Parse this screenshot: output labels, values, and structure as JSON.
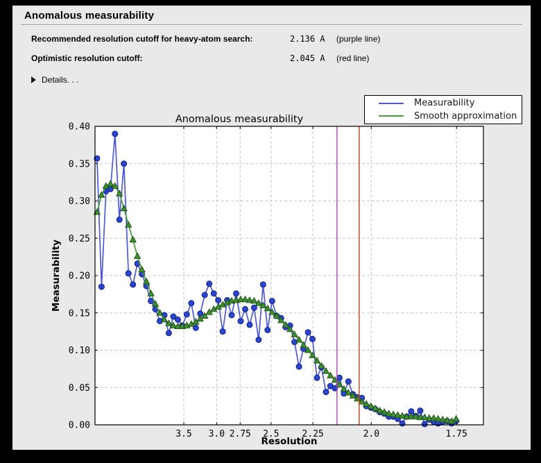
{
  "window": {
    "title": "Anomalous measurability",
    "rows": [
      {
        "label": "Recommended resolution cutoff for heavy-atom search:",
        "value": "2.136 A",
        "note": "(purple line)"
      },
      {
        "label": "Optimistic resolution cutoff:",
        "value": "2.045 A",
        "note": "(red line)"
      }
    ],
    "details_label": "Details. . ."
  },
  "chart_data": {
    "type": "line",
    "title": "Anomalous measurability",
    "xlabel": "Resolution",
    "ylabel": "Measurability",
    "x_scale": "d_star_sq (1/resolution^2), resolution in Angstrom decreasing to the right",
    "xlim_dss": [
      0.0019,
      0.3507
    ],
    "ylim": [
      0.0,
      0.4
    ],
    "grid": true,
    "legend_position": "top-right-above-axes",
    "x_ticks": [
      {
        "d": 3.5,
        "label": "3.5"
      },
      {
        "d": 3.0,
        "label": "3.0"
      },
      {
        "d": 2.75,
        "label": "2.75"
      },
      {
        "d": 2.5,
        "label": "2.5"
      },
      {
        "d": 2.25,
        "label": "2.25"
      },
      {
        "d": 2.0,
        "label": "2.0"
      },
      {
        "d": 1.75,
        "label": "1.75"
      }
    ],
    "y_ticks": [
      {
        "v": 0.0,
        "label": "0.00"
      },
      {
        "v": 0.05,
        "label": "0.05"
      },
      {
        "v": 0.1,
        "label": "0.10"
      },
      {
        "v": 0.15,
        "label": "0.15"
      },
      {
        "v": 0.2,
        "label": "0.20"
      },
      {
        "v": 0.25,
        "label": "0.25"
      },
      {
        "v": 0.3,
        "label": "0.30"
      },
      {
        "v": 0.35,
        "label": "0.35"
      },
      {
        "v": 0.4,
        "label": "0.40"
      }
    ],
    "series": [
      {
        "name": "Measurability",
        "marker": "circle",
        "line_color": "#4d58d4",
        "marker_color": "#2a46cc",
        "marker_edge": "#141e86",
        "x_start_dss": 0.0037,
        "x_step_dss": 0.004031,
        "values": [
          0.357,
          0.185,
          0.313,
          0.316,
          0.39,
          0.275,
          0.35,
          0.203,
          0.188,
          0.216,
          0.202,
          0.186,
          0.166,
          0.155,
          0.139,
          0.147,
          0.123,
          0.145,
          0.141,
          0.133,
          0.148,
          0.163,
          0.13,
          0.149,
          0.174,
          0.189,
          0.176,
          0.167,
          0.125,
          0.167,
          0.147,
          0.176,
          0.139,
          0.155,
          0.134,
          0.157,
          0.114,
          0.188,
          0.127,
          0.166,
          0.146,
          0.143,
          0.131,
          0.133,
          0.111,
          0.078,
          0.102,
          0.124,
          0.115,
          0.063,
          0.077,
          0.044,
          0.052,
          0.049,
          0.063,
          0.042,
          0.058,
          0.041,
          0.037,
          0.036,
          0.025,
          0.023,
          0.021,
          0.017,
          0.015,
          0.011,
          0.011,
          0.008,
          0.002,
          0.011,
          0.018,
          0.012,
          0.019,
          0.001,
          0.007,
          0.004,
          0.002,
          0.004,
          0.005,
          0.002,
          0.005
        ]
      },
      {
        "name": "Smooth approximation",
        "marker": "triangle",
        "line_color": "#4b9a3c",
        "marker_color": "#3f9130",
        "marker_edge": "#1f5317",
        "x_start_dss": 0.0037,
        "x_step_dss": 0.004031,
        "values": [
          0.285,
          0.308,
          0.32,
          0.323,
          0.32,
          0.31,
          0.29,
          0.268,
          0.248,
          0.226,
          0.208,
          0.192,
          0.176,
          0.162,
          0.15,
          0.141,
          0.136,
          0.133,
          0.132,
          0.132,
          0.133,
          0.135,
          0.138,
          0.142,
          0.146,
          0.151,
          0.155,
          0.158,
          0.161,
          0.164,
          0.166,
          0.167,
          0.168,
          0.168,
          0.167,
          0.166,
          0.163,
          0.16,
          0.156,
          0.151,
          0.146,
          0.14,
          0.134,
          0.128,
          0.121,
          0.114,
          0.107,
          0.1,
          0.093,
          0.086,
          0.079,
          0.072,
          0.066,
          0.06,
          0.054,
          0.048,
          0.043,
          0.039,
          0.035,
          0.031,
          0.028,
          0.025,
          0.022,
          0.019,
          0.017,
          0.015,
          0.014,
          0.013,
          0.012,
          0.011,
          0.011,
          0.011,
          0.01,
          0.01,
          0.009,
          0.009,
          0.008,
          0.007,
          0.006,
          0.005,
          0.008
        ]
      }
    ],
    "vlines": [
      {
        "d": 2.136,
        "color": "#b73cb8",
        "name": "purple line"
      },
      {
        "d": 2.045,
        "color": "#cf3f10",
        "name": "red line"
      }
    ]
  },
  "colors": {
    "window_bg": "#e9e9e9",
    "plot_bg": "#ffffff",
    "grid": "#c6c6c6",
    "axis": "#000000",
    "frame": "#000000"
  }
}
